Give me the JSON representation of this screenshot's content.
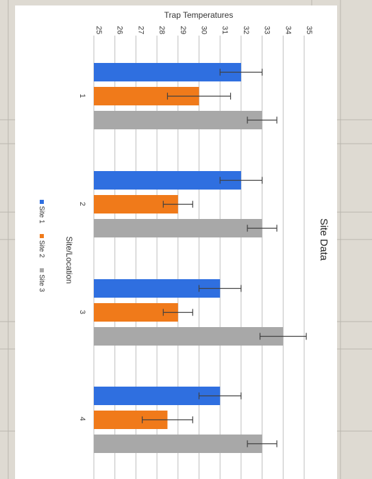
{
  "chart_data": {
    "type": "bar",
    "title": "Site Data",
    "ylabel": "Trap Temperatures",
    "xlabel": "Site/Location",
    "categories": [
      "1",
      "2",
      "3",
      "4"
    ],
    "yticks": [
      "25",
      "26",
      "27",
      "28",
      "29",
      "30",
      "31",
      "32",
      "33",
      "34",
      "35"
    ],
    "ylim": [
      25,
      35
    ],
    "grid": true,
    "legend": "bottom",
    "series": [
      {
        "name": "Site 1",
        "color": "#2f6fe0",
        "values": [
          32,
          32,
          31,
          31
        ],
        "errors": [
          1.0,
          1.0,
          1.0,
          1.0
        ]
      },
      {
        "name": "Site 2",
        "color": "#f07a1a",
        "values": [
          30,
          29,
          29,
          28.5
        ],
        "errors": [
          1.5,
          0.7,
          0.7,
          1.2
        ]
      },
      {
        "name": "Site 3",
        "color": "#a8a8a8",
        "values": [
          33,
          33,
          34,
          33
        ],
        "errors": [
          0.7,
          0.7,
          1.1,
          0.7
        ]
      }
    ]
  }
}
